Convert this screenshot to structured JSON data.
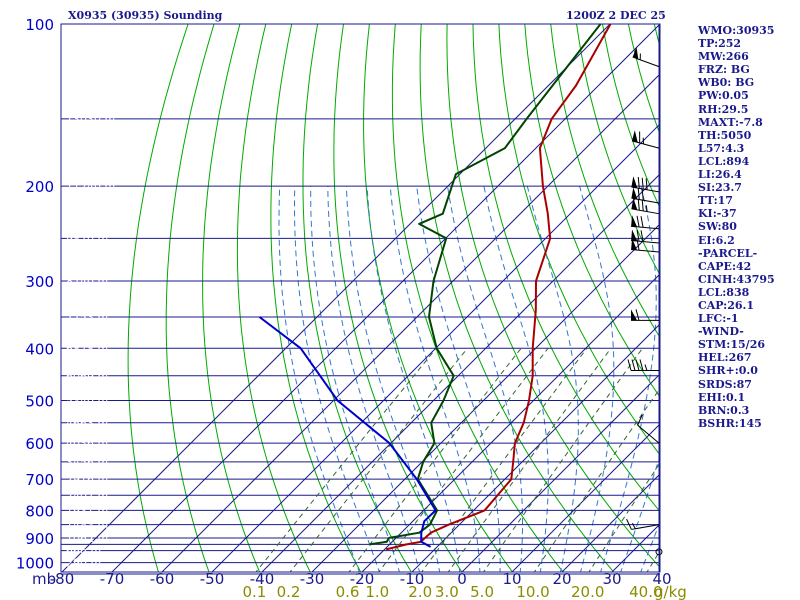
{
  "header": {
    "station_title": "X0935 (30935) Sounding",
    "valid_time": "1200Z  2 DEC 25"
  },
  "stats": [
    "WMO:30935",
    "TP:252",
    "MW:266",
    "FRZ: BG",
    "WB0: BG",
    "PW:0.05",
    "RH:29.5",
    "MAXT:-7.8",
    "TH:5050",
    "L57:4.3",
    "LCL:894",
    "LI:26.4",
    "SI:23.7",
    "TT:17",
    "KI:-37",
    "SW:80",
    "EI:6.2",
    "-PARCEL-",
    "CAPE:42",
    "CINH:43795",
    "LCL:838",
    "CAP:26.1",
    "LFC:-1",
    "-WIND-",
    "STM:15/26",
    "HEL:267",
    "SHR+:0.0",
    "SRDS:87",
    "EHI:0.1",
    "BRN:0.3",
    "BSHR:145"
  ],
  "colors": {
    "frame": "#1a1a8c",
    "pressure_axis_labels": "#0000cc",
    "temperature_axis_labels": "#1a1a8c",
    "mixing_ratio_labels": "#8c8c00",
    "height_labels": "#ffffff",
    "dry_adiabats": "#00aa00",
    "moist_adiabats": "#3377cc",
    "mixing_ratio_lines": "#336633",
    "temperature_profile": "#aa0000",
    "dewpoint_profile": "#004400",
    "parcel_path": "#0000cc",
    "wind_barbs": "#000000"
  },
  "chart_data": {
    "type": "line",
    "title": "X0935 (30935) Sounding",
    "y_axis": {
      "unit_label": "mb",
      "scale": "log-pressure",
      "range": [
        1050,
        100
      ],
      "tick_labels": [
        "100",
        "200",
        "300",
        "400",
        "500",
        "600",
        "700",
        "800",
        "900",
        "1000"
      ],
      "isobars_mb": [
        100,
        150,
        200,
        250,
        300,
        350,
        400,
        450,
        500,
        550,
        600,
        650,
        700,
        750,
        800,
        850,
        900,
        925,
        950,
        1000,
        1050
      ]
    },
    "x_axis": {
      "unit": "°C",
      "skew": true,
      "tick_values": [
        -80,
        -70,
        -60,
        -50,
        -40,
        -30,
        -20,
        -10,
        0,
        10,
        20,
        30,
        40
      ],
      "tick_labels": [
        "-80",
        "-70",
        "-60",
        "-50",
        "-40",
        "-30",
        "-20",
        "-10",
        "0",
        "10",
        "20",
        "30",
        "40"
      ]
    },
    "mixing_ratio_axis": {
      "unit_label": "g/kg",
      "values": [
        0.1,
        0.2,
        0.6,
        1.0,
        2.0,
        3.0,
        5.0,
        10.0,
        20.0,
        40.0
      ],
      "tick_labels": [
        "0.1",
        "0.2",
        "0.6",
        "1.0",
        "2.0",
        "3.0",
        "5.0",
        "10.0",
        "20.0",
        "40.0"
      ]
    },
    "height_labels": [
      {
        "p": 100,
        "label": "15580 m"
      },
      {
        "p": 150,
        "label": "13030 m"
      },
      {
        "p": 200,
        "label": "11240 m"
      },
      {
        "p": 250,
        "label": "9870 m"
      },
      {
        "p": 300,
        "label": "8740 m"
      },
      {
        "p": 350,
        "label": "7753 m"
      },
      {
        "p": 400,
        "label": "6878 m"
      },
      {
        "p": 450,
        "label": "6069 m"
      },
      {
        "p": 500,
        "label": "5340 m"
      },
      {
        "p": 550,
        "label": "4663 m"
      },
      {
        "p": 600,
        "label": "4036 m"
      },
      {
        "p": 650,
        "label": "3456 m"
      },
      {
        "p": 700,
        "label": "2916 m"
      },
      {
        "p": 750,
        "label": "2407 m"
      },
      {
        "p": 800,
        "label": "1931 m"
      },
      {
        "p": 850,
        "label": "1483 m"
      },
      {
        "p": 900,
        "label": "1062 m"
      },
      {
        "p": 950,
        "label": "666 m"
      },
      {
        "p": 1000,
        "label": "290 m"
      }
    ],
    "series": [
      {
        "name": "Temperature",
        "color": "#aa0000",
        "points": [
          {
            "p": 100,
            "t": -79.9
          },
          {
            "p": 130,
            "t": -74.5
          },
          {
            "p": 150,
            "t": -72.7
          },
          {
            "p": 170,
            "t": -69.2
          },
          {
            "p": 200,
            "t": -61.0
          },
          {
            "p": 225,
            "t": -54.5
          },
          {
            "p": 240,
            "t": -51.2
          },
          {
            "p": 250,
            "t": -49.1
          },
          {
            "p": 300,
            "t": -43.4
          },
          {
            "p": 340,
            "t": -37.6
          },
          {
            "p": 400,
            "t": -30.6
          },
          {
            "p": 450,
            "t": -25.1
          },
          {
            "p": 500,
            "t": -20.9
          },
          {
            "p": 550,
            "t": -17.5
          },
          {
            "p": 600,
            "t": -15.2
          },
          {
            "p": 650,
            "t": -11.8
          },
          {
            "p": 700,
            "t": -8.7
          },
          {
            "p": 800,
            "t": -7.8
          },
          {
            "p": 850,
            "t": -12.1
          },
          {
            "p": 880,
            "t": -14.1
          },
          {
            "p": 900,
            "t": -14.2
          },
          {
            "p": 915,
            "t": -14.3
          },
          {
            "p": 925,
            "t": -16.6
          },
          {
            "p": 945,
            "t": -19.7
          }
        ]
      },
      {
        "name": "Dewpoint",
        "color": "#004400",
        "points": [
          {
            "p": 100,
            "t": -81.9
          },
          {
            "p": 150,
            "t": -77.7
          },
          {
            "p": 170,
            "t": -76.2
          },
          {
            "p": 190,
            "t": -80.8
          },
          {
            "p": 225,
            "t": -75.5
          },
          {
            "p": 235,
            "t": -78.2
          },
          {
            "p": 250,
            "t": -69.9
          },
          {
            "p": 300,
            "t": -63.9
          },
          {
            "p": 350,
            "t": -57.6
          },
          {
            "p": 400,
            "t": -49.8
          },
          {
            "p": 450,
            "t": -40.9
          },
          {
            "p": 500,
            "t": -38.0
          },
          {
            "p": 550,
            "t": -36.0
          },
          {
            "p": 600,
            "t": -31.3
          },
          {
            "p": 650,
            "t": -29.8
          },
          {
            "p": 700,
            "t": -27.4
          },
          {
            "p": 800,
            "t": -17.3
          },
          {
            "p": 850,
            "t": -15.9
          },
          {
            "p": 880,
            "t": -16.4
          },
          {
            "p": 900,
            "t": -21.4
          },
          {
            "p": 915,
            "t": -21.1
          },
          {
            "p": 925,
            "t": -24.0
          }
        ]
      },
      {
        "name": "Parcel",
        "color": "#0000cc",
        "points": [
          {
            "p": 350,
            "t": -91.5
          },
          {
            "p": 400,
            "t": -77.0
          },
          {
            "p": 500,
            "t": -59.2
          },
          {
            "p": 600,
            "t": -40.3
          },
          {
            "p": 700,
            "t": -27.6
          },
          {
            "p": 800,
            "t": -17.6
          },
          {
            "p": 838,
            "t": -17.7
          },
          {
            "p": 880,
            "t": -16.0
          },
          {
            "p": 915,
            "t": -14.2
          },
          {
            "p": 935,
            "t": -11.3
          }
        ]
      }
    ],
    "wind_barbs": [
      {
        "p": 120,
        "dir": 290,
        "kt": 55
      },
      {
        "p": 170,
        "dir": 285,
        "kt": 65
      },
      {
        "p": 205,
        "dir": 280,
        "kt": 80
      },
      {
        "p": 215,
        "dir": 280,
        "kt": 70
      },
      {
        "p": 225,
        "dir": 280,
        "kt": 75
      },
      {
        "p": 240,
        "dir": 275,
        "kt": 70
      },
      {
        "p": 255,
        "dir": 275,
        "kt": 70
      },
      {
        "p": 265,
        "dir": 275,
        "kt": 60
      },
      {
        "p": 355,
        "dir": 270,
        "kt": 60
      },
      {
        "p": 440,
        "dir": 270,
        "kt": 45
      },
      {
        "p": 600,
        "dir": 310,
        "kt": 10
      },
      {
        "p": 850,
        "dir": 260,
        "kt": 15
      },
      {
        "p": 955,
        "dir": 0,
        "kt": 0
      }
    ]
  }
}
